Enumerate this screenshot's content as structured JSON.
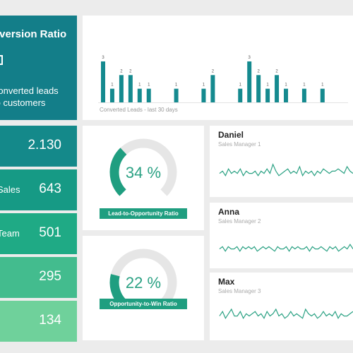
{
  "header": {
    "title": "Conversion Ratio",
    "subtitle_line1": "Converted leads",
    "subtitle_line2": "to customers"
  },
  "funnel": [
    {
      "label": "",
      "value": "2.130",
      "color": "#14898a"
    },
    {
      "label": "Sales",
      "value": "643",
      "color": "#169a85"
    },
    {
      "label": "Team",
      "value": "501",
      "color": "#1faa85"
    },
    {
      "label": "",
      "value": "295",
      "color": "#43bc8e"
    },
    {
      "label": "",
      "value": "134",
      "color": "#6fd19b"
    }
  ],
  "chart_data": {
    "type": "bar",
    "title": "",
    "xlabel": "Converted Leads - last 30 days",
    "ylabel": "",
    "values": [
      3,
      1,
      2,
      2,
      1,
      1,
      0,
      0,
      1,
      0,
      0,
      1,
      2,
      0,
      0,
      1,
      3,
      2,
      1,
      2,
      1,
      0,
      1,
      0,
      1,
      0,
      0,
      0,
      0,
      3
    ],
    "data_labels": [
      "3",
      "1",
      "2",
      "2",
      "1",
      "1",
      "",
      "",
      "1",
      "",
      "",
      "1",
      "2",
      "",
      "",
      "1",
      "3",
      "2",
      "1",
      "2",
      "1",
      "",
      "1",
      "",
      "1",
      "",
      "",
      "",
      "",
      "3"
    ],
    "ylim": [
      0,
      3
    ],
    "grid": false,
    "bar_color": "#158a8f"
  },
  "gauges": [
    {
      "value_text": "34 %",
      "fraction": 0.34,
      "label": "Lead-to-Opportunity Ratio"
    },
    {
      "value_text": "22 %",
      "fraction": 0.22,
      "label": "Opportunity-to-Win Ratio"
    }
  ],
  "managers": [
    {
      "name": "Daniel",
      "role": "Sales Manager 1",
      "spark": [
        5,
        6,
        4,
        7,
        5,
        6,
        5,
        7,
        4,
        6,
        5,
        5,
        6,
        4,
        6,
        5,
        7,
        5,
        9,
        6,
        4,
        5,
        6,
        7,
        5,
        6,
        5,
        8,
        4,
        6,
        5,
        6,
        4,
        6,
        5,
        7,
        6,
        5,
        6,
        6,
        7,
        6,
        5,
        8,
        6,
        5
      ]
    },
    {
      "name": "Anna",
      "role": "Sales Manager 2",
      "spark": [
        5,
        6,
        4,
        6,
        5,
        5,
        6,
        4,
        6,
        5,
        6,
        5,
        6,
        4,
        5,
        6,
        5,
        6,
        5,
        4,
        6,
        5,
        5,
        6,
        4,
        6,
        5,
        6,
        5,
        5,
        6,
        4,
        6,
        5,
        5,
        6,
        5,
        4,
        6,
        5,
        6,
        4,
        5,
        6,
        5,
        7,
        5
      ]
    },
    {
      "name": "Max",
      "role": "Sales Manager 3",
      "spark": [
        5,
        7,
        4,
        6,
        8,
        5,
        5,
        7,
        4,
        6,
        5,
        6,
        7,
        5,
        6,
        4,
        7,
        5,
        6,
        8,
        5,
        6,
        4,
        5,
        7,
        5,
        6,
        5,
        4,
        8,
        6,
        5,
        6,
        4,
        5,
        7,
        5,
        6,
        5,
        7,
        4,
        6,
        5,
        5,
        6,
        7
      ]
    }
  ]
}
